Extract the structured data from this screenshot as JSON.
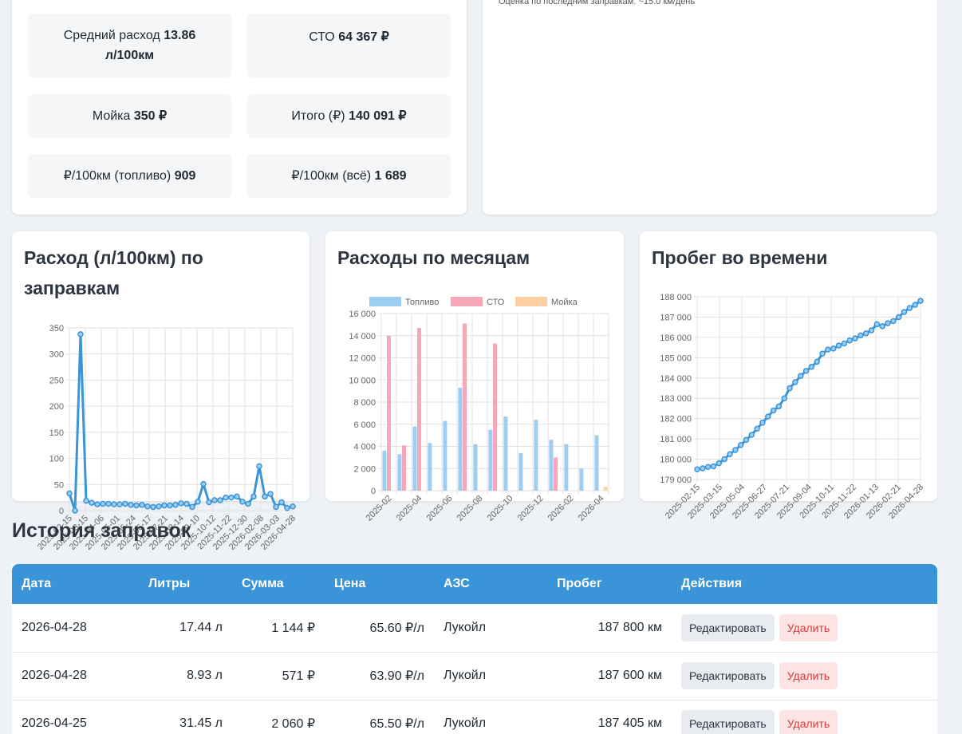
{
  "stats": {
    "avg_label": "Средний расход",
    "avg_value": "13.86 л/100км",
    "service_label": "СТО",
    "service_value": "64 367 ₽",
    "wash_label": "Мойка",
    "wash_value": "350 ₽",
    "total_label": "Итого (₽)",
    "total_value": "140 091 ₽",
    "per100_fuel_label": "₽/100км (топливо)",
    "per100_fuel_value": "909",
    "per100_all_label": "₽/100км (всё)",
    "per100_all_value": "1 689"
  },
  "forecast": {
    "note": "Оценка по последним заправкам: ~15.0 км/день"
  },
  "charts": {
    "consumption_title": "Расход (л/100км) по заправкам",
    "monthly_title": "Расходы по месяцам",
    "mileage_title": "Пробег во времени"
  },
  "chart_data": [
    {
      "type": "line",
      "title": "Расход (л/100км) по заправкам",
      "ylim": [
        0,
        350
      ],
      "yticks": [
        0,
        50,
        100,
        150,
        200,
        250,
        300,
        350
      ],
      "x_tick_labels": [
        "2025-02-15",
        "2025-03-15",
        "2025-04-06",
        "2025-05-01",
        "2025-05-24",
        "2025-06-17",
        "2025-07-21",
        "2025-08-14",
        "2025-09-10",
        "2025-10-12",
        "2025-11-22",
        "2025-12-30",
        "2026-02-08",
        "2026-03-03",
        "2026-04-28"
      ],
      "values": [
        33,
        0,
        338,
        19,
        15,
        12,
        13,
        13,
        12,
        12,
        13,
        11,
        10,
        11,
        8,
        7,
        8,
        10,
        10,
        11,
        14,
        13,
        7,
        17,
        51,
        16,
        20,
        20,
        25,
        25,
        27,
        17,
        13,
        27,
        85,
        27,
        32,
        7,
        16,
        5,
        8
      ],
      "grid": true
    },
    {
      "type": "bar",
      "title": "Расходы по месяцам",
      "categories": [
        "2025-02",
        "2025-03",
        "2025-04",
        "2025-05",
        "2025-06",
        "2025-07",
        "2025-08",
        "2025-09",
        "2025-10",
        "2025-11",
        "2025-12",
        "2026-01",
        "2026-02",
        "2026-03",
        "2026-04"
      ],
      "x_tick_labels": [
        "2025-02",
        "2025-04",
        "2025-06",
        "2025-08",
        "2025-10",
        "2025-12",
        "2026-02",
        "2026-04"
      ],
      "series": [
        {
          "name": "Топливо",
          "color": "#9ccdf2",
          "values": [
            3600,
            3300,
            5800,
            4300,
            6300,
            9300,
            4200,
            5500,
            6700,
            3400,
            6400,
            4600,
            4200,
            2000,
            5000
          ]
        },
        {
          "name": "СТО",
          "color": "#f7a8b8",
          "values": [
            14000,
            4100,
            14700,
            0,
            0,
            15100,
            0,
            13300,
            0,
            0,
            0,
            3000,
            0,
            0,
            0
          ]
        },
        {
          "name": "Мойка",
          "color": "#fcd0a3",
          "values": [
            0,
            0,
            0,
            0,
            0,
            0,
            0,
            0,
            0,
            0,
            0,
            0,
            0,
            0,
            350
          ]
        }
      ],
      "ylim": [
        0,
        16000
      ],
      "yticks": [
        0,
        2000,
        4000,
        6000,
        8000,
        10000,
        12000,
        14000,
        16000
      ],
      "ytick_labels": [
        "0",
        "2 000",
        "4 000",
        "6 000",
        "8 000",
        "10 000",
        "12 000",
        "14 000",
        "16 000"
      ],
      "legend": "top",
      "grid": true
    },
    {
      "type": "line",
      "title": "Пробег во времени",
      "ylim": [
        179000,
        188000
      ],
      "yticks": [
        179000,
        180000,
        181000,
        182000,
        183000,
        184000,
        185000,
        186000,
        187000,
        188000
      ],
      "ytick_labels": [
        "179 000",
        "180 000",
        "181 000",
        "182 000",
        "183 000",
        "184 000",
        "185 000",
        "186 000",
        "187 000",
        "188 000"
      ],
      "x_tick_labels": [
        "2025-02-15",
        "2025-03-15",
        "2025-05-04",
        "2025-06-27",
        "2025-07-21",
        "2025-09-04",
        "2025-10-11",
        "2025-11-22",
        "2026-01-13",
        "2026-02-21",
        "2026-04-28"
      ],
      "values": [
        179500,
        179550,
        179620,
        179650,
        179800,
        180000,
        180250,
        180450,
        180700,
        180950,
        181200,
        181500,
        181800,
        182100,
        182400,
        182600,
        183000,
        183500,
        183800,
        184100,
        184350,
        184550,
        184800,
        185200,
        185400,
        185450,
        185600,
        185700,
        185850,
        185950,
        186100,
        186200,
        186350,
        186650,
        186550,
        186700,
        186800,
        187000,
        187250,
        187450,
        187600,
        187800
      ],
      "grid": true
    }
  ],
  "history": {
    "title": "История заправок",
    "columns": [
      "Дата",
      "Литры",
      "Сумма",
      "Цена",
      "АЗС",
      "Пробег",
      "Действия"
    ],
    "rows": [
      {
        "date": "2026-04-28",
        "liters": "17.44 л",
        "sum": "1 144 ₽",
        "price": "65.60 ₽/л",
        "station": "Лукойл",
        "mileage": "187 800 км"
      },
      {
        "date": "2026-04-28",
        "liters": "8.93 л",
        "sum": "571 ₽",
        "price": "63.90 ₽/л",
        "station": "Лукойл",
        "mileage": "187 600 км"
      },
      {
        "date": "2026-04-25",
        "liters": "31.45 л",
        "sum": "2 060 ₽",
        "price": "65.50 ₽/л",
        "station": "Лукойл",
        "mileage": "187 405 км"
      }
    ],
    "edit_label": "Редактировать",
    "delete_label": "Удалить"
  }
}
